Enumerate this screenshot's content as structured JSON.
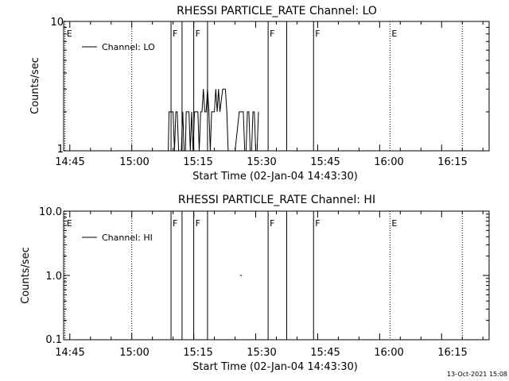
{
  "chart_data": [
    {
      "type": "line",
      "title": "RHESSI PARTICLE_RATE Channel: LO",
      "xlabel": "Start Time (02-Jan-04 14:43:30)",
      "ylabel": "Counts/sec",
      "yscale": "log",
      "xlim": [
        "14:43:30",
        "16:26:30"
      ],
      "ylim": [
        1,
        10
      ],
      "xticks": [
        "14:45",
        "15:00",
        "15:15",
        "15:30",
        "15:45",
        "16:00",
        "16:15"
      ],
      "yticks": [
        "1",
        "10"
      ],
      "legend": {
        "position": "top-left",
        "entries": [
          "Channel: LO"
        ]
      },
      "grid": false,
      "series": [
        {
          "name": "Channel: LO",
          "x": [
            "15:08:30",
            "15:08:50",
            "15:09:00",
            "15:10:00",
            "15:10:20",
            "15:10:40",
            "15:11:00",
            "15:11:20",
            "15:12:00",
            "15:12:20",
            "15:12:40",
            "15:13:00",
            "15:13:10",
            "15:13:30",
            "15:13:50",
            "15:14:10",
            "15:14:30",
            "15:14:50",
            "15:15:10",
            "15:15:20",
            "15:15:40",
            "15:16:00",
            "15:16:20",
            "15:16:40",
            "15:17:00",
            "15:17:20",
            "15:17:40",
            "15:18:00",
            "15:18:20",
            "15:18:40",
            "15:19:00",
            "15:19:20",
            "15:19:40",
            "15:20:00",
            "15:20:20",
            "15:20:40",
            "15:21:00",
            "15:21:20",
            "15:22:00",
            "15:22:40",
            "15:23:00",
            "15:23:20",
            "15:23:40",
            "15:24:00",
            "15:25:00",
            "15:26:00",
            "15:26:20",
            "15:26:40",
            "15:27:00",
            "15:27:20",
            "15:27:40",
            "15:28:00",
            "15:28:20",
            "15:28:40",
            "15:29:00",
            "15:29:20",
            "15:29:40",
            "15:30:00",
            "15:30:20",
            "15:30:40"
          ],
          "y": [
            1,
            1,
            2,
            2,
            1,
            2,
            2,
            1,
            1,
            2,
            1,
            1,
            2,
            2,
            2,
            1,
            2,
            1,
            2,
            2,
            2,
            2,
            1,
            2,
            2,
            3,
            2,
            2,
            3,
            2,
            1,
            2,
            2,
            2,
            3,
            2,
            3,
            2,
            3,
            3,
            2,
            1,
            1,
            1,
            1,
            2,
            2,
            2,
            2,
            1,
            1,
            2,
            2,
            1,
            1,
            2,
            2,
            1,
            1,
            2
          ]
        }
      ],
      "markers": [
        {
          "time": "14:43:50",
          "label": "E",
          "style": "dotted"
        },
        {
          "time": "15:00:00",
          "label": "",
          "style": "dotted"
        },
        {
          "time": "15:09:30",
          "label": "F",
          "style": "solid"
        },
        {
          "time": "15:12:10",
          "label": "",
          "style": "solid"
        },
        {
          "time": "15:15:00",
          "label": "F",
          "style": "solid"
        },
        {
          "time": "15:18:20",
          "label": "",
          "style": "solid"
        },
        {
          "time": "15:33:00",
          "label": "F",
          "style": "solid"
        },
        {
          "time": "15:37:30",
          "label": "",
          "style": "solid"
        },
        {
          "time": "15:44:00",
          "label": "F",
          "style": "solid"
        },
        {
          "time": "16:02:30",
          "label": "E",
          "style": "dotted"
        },
        {
          "time": "16:20:00",
          "label": "",
          "style": "dotted"
        }
      ]
    },
    {
      "type": "line",
      "title": "RHESSI PARTICLE_RATE Channel: HI",
      "xlabel": "Start Time (02-Jan-04 14:43:30)",
      "ylabel": "Counts/sec",
      "yscale": "log",
      "xlim": [
        "14:43:30",
        "16:26:30"
      ],
      "ylim": [
        0.1,
        10
      ],
      "xticks": [
        "14:45",
        "15:00",
        "15:15",
        "15:30",
        "15:45",
        "16:00",
        "16:15"
      ],
      "yticks": [
        "0.1",
        "1.0",
        "10.0"
      ],
      "legend": {
        "position": "top-left",
        "entries": [
          "Channel: HI"
        ]
      },
      "grid": false,
      "series": [
        {
          "name": "Channel: HI",
          "x": [
            "15:26:10",
            "15:26:40"
          ],
          "y": [
            1,
            1
          ]
        }
      ],
      "markers": [
        {
          "time": "14:43:50",
          "label": "E",
          "style": "dotted"
        },
        {
          "time": "15:00:00",
          "label": "",
          "style": "dotted"
        },
        {
          "time": "15:09:30",
          "label": "F",
          "style": "solid"
        },
        {
          "time": "15:12:10",
          "label": "",
          "style": "solid"
        },
        {
          "time": "15:15:00",
          "label": "F",
          "style": "solid"
        },
        {
          "time": "15:18:20",
          "label": "",
          "style": "solid"
        },
        {
          "time": "15:33:00",
          "label": "F",
          "style": "solid"
        },
        {
          "time": "15:37:30",
          "label": "",
          "style": "solid"
        },
        {
          "time": "15:44:00",
          "label": "F",
          "style": "solid"
        },
        {
          "time": "16:02:30",
          "label": "E",
          "style": "dotted"
        },
        {
          "time": "16:20:00",
          "label": "",
          "style": "dotted"
        }
      ]
    }
  ],
  "footer": {
    "timestamp": "13-Oct-2021 15:08"
  }
}
